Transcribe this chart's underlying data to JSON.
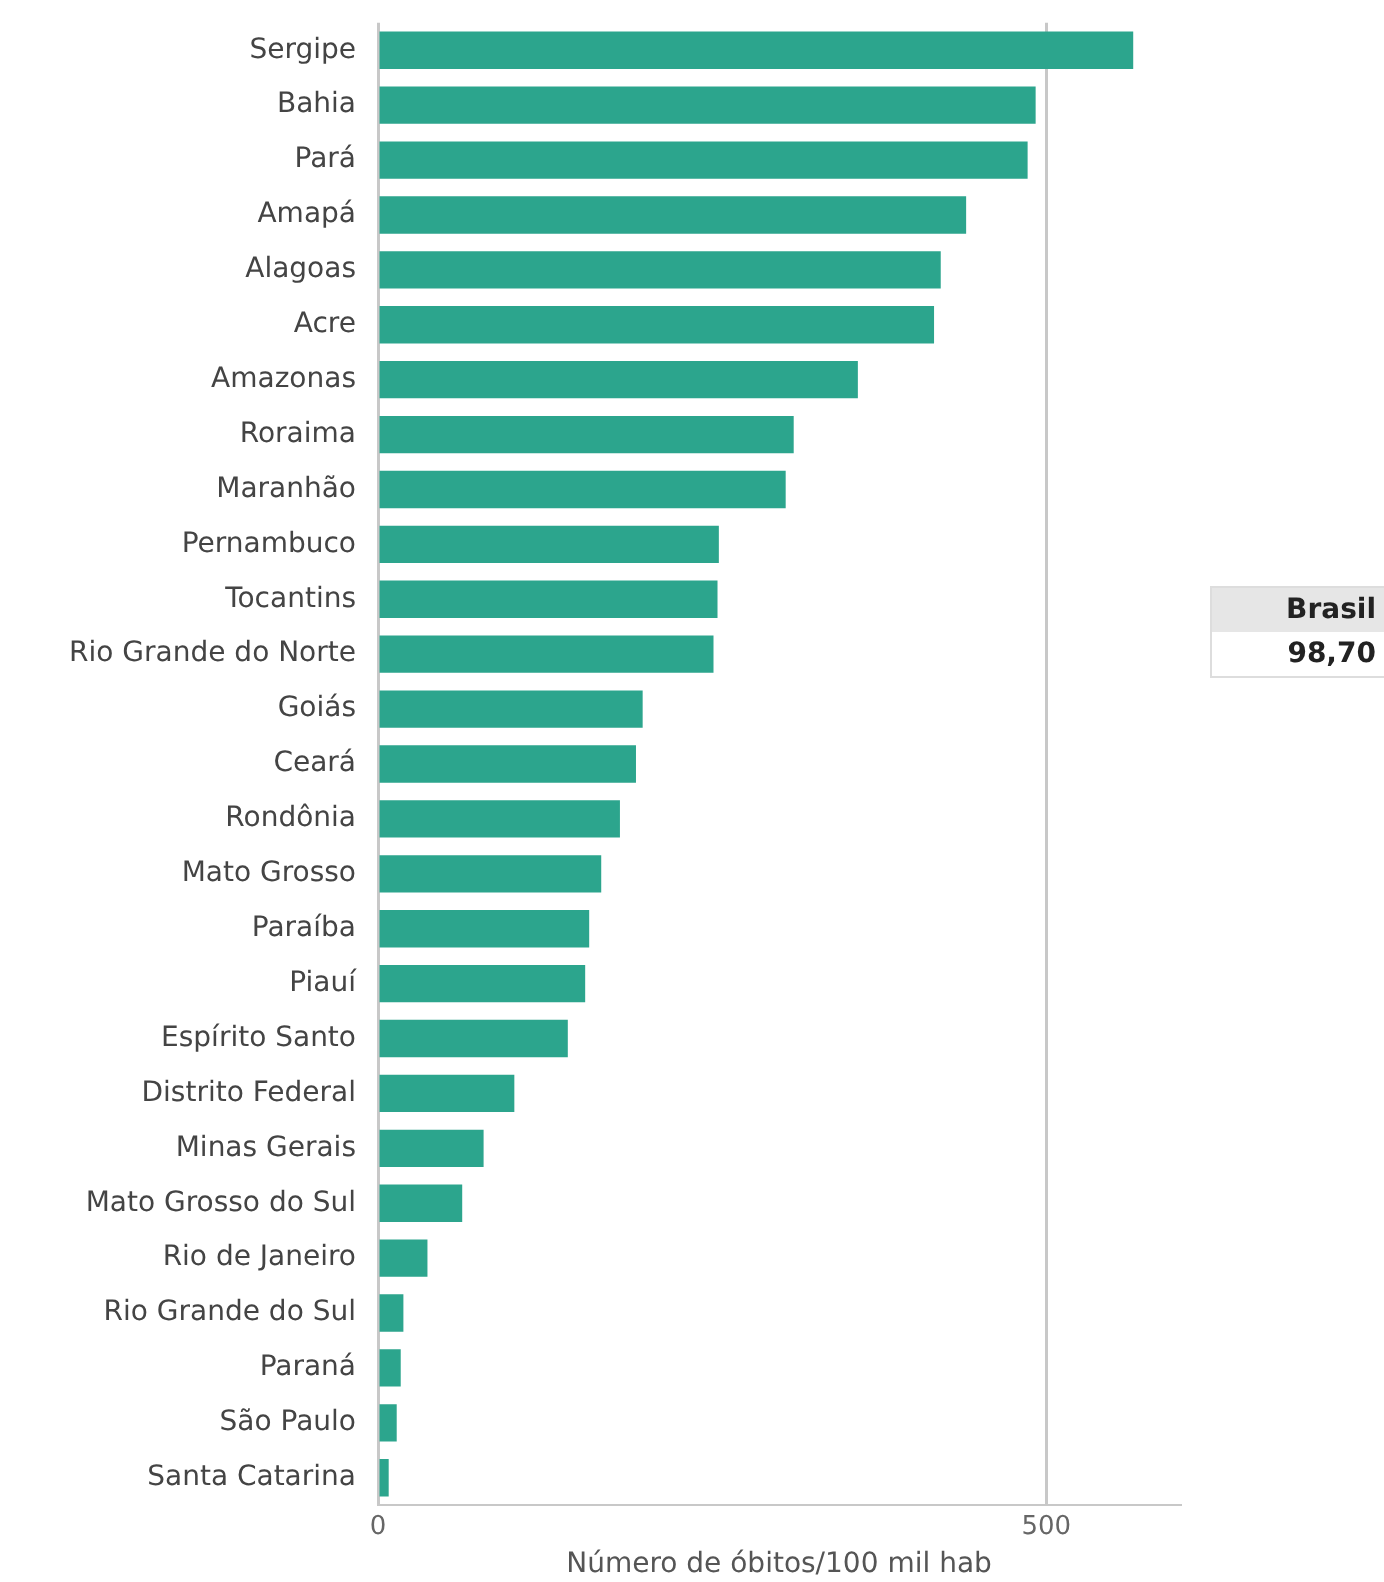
{
  "chart_data": {
    "type": "bar",
    "orientation": "horizontal",
    "xlabel": "Número de óbitos/100 mil hab",
    "categories": [
      "Sergipe",
      "Bahia",
      "Pará",
      "Amapá",
      "Alagoas",
      "Acre",
      "Amazonas",
      "Roraima",
      "Maranhão",
      "Pernambuco",
      "Tocantins",
      "Rio Grande do Norte",
      "Goiás",
      "Ceará",
      "Rondônia",
      "Mato Grosso",
      "Paraíba",
      "Piauí",
      "Espírito Santo",
      "Distrito Federal",
      "Minas Gerais",
      "Mato Grosso do Sul",
      "Rio de Janeiro",
      "Rio Grande do Sul",
      "Paraná",
      "São Paulo",
      "Santa Catarina"
    ],
    "values": [
      565,
      492,
      486,
      440,
      421,
      416,
      359,
      311,
      305,
      255,
      254,
      251,
      198,
      193,
      181,
      167,
      158,
      155,
      142,
      102,
      79,
      63,
      37,
      19,
      17,
      14,
      8
    ],
    "color": "#2ca58d",
    "xlim": [
      0,
      600
    ],
    "xticks": [
      0,
      500
    ],
    "grid": "x",
    "annotations": [
      "Brasil",
      "98,70"
    ]
  }
}
